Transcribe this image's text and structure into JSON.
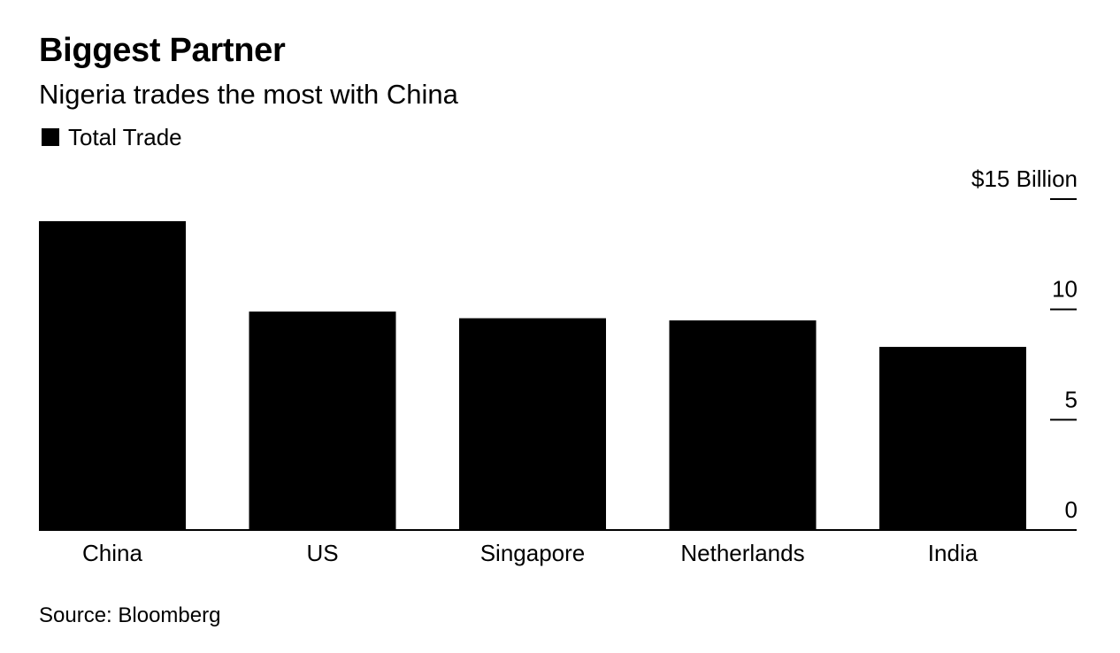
{
  "header": {
    "title": "Biggest Partner",
    "subtitle": "Nigeria trades the most with China",
    "legend_label": "Total Trade"
  },
  "footer": {
    "source": "Source: Bloomberg"
  },
  "colors": {
    "bar": "#000000",
    "background": "#ffffff"
  },
  "chart_data": {
    "type": "bar",
    "title": "Biggest Partner",
    "subtitle": "Nigeria trades the most with China",
    "categories": [
      "China",
      "US",
      "Singapore",
      "Netherlands",
      "India"
    ],
    "series": [
      {
        "name": "Total Trade",
        "values": [
          14.0,
          9.9,
          9.6,
          9.5,
          8.3
        ]
      }
    ],
    "ylim": [
      0,
      15
    ],
    "yticks": [
      0,
      5,
      10,
      15
    ],
    "ytick_labels": [
      "0",
      "5",
      "10",
      "$15 Billion"
    ],
    "xlabel": "",
    "ylabel": "",
    "legend_position": "top-left",
    "grid": false
  }
}
